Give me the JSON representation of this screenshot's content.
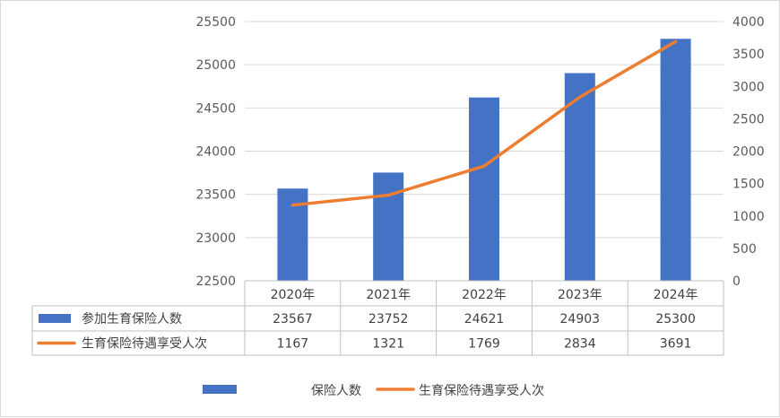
{
  "chart_data": {
    "type": "bar+line",
    "categories": [
      "2020年",
      "2021年",
      "2022年",
      "2023年",
      "2024年"
    ],
    "series": [
      {
        "name": "参加生育保险人数",
        "type": "bar",
        "axis": "left",
        "color": "#4472C4",
        "values": [
          23567,
          23752,
          24621,
          24903,
          25300
        ]
      },
      {
        "name": "生育保险待遇享受人次",
        "type": "line",
        "axis": "right",
        "color": "#ED7D31",
        "values": [
          1167,
          1321,
          1769,
          2834,
          3691
        ]
      }
    ],
    "y_left": {
      "min": 22500,
      "max": 25500,
      "step": 500,
      "ticks": [
        "22500",
        "23000",
        "23500",
        "24000",
        "24500",
        "25000",
        "25500"
      ]
    },
    "y_right": {
      "min": 0,
      "max": 4000,
      "step": 500,
      "ticks": [
        "0",
        "500",
        "1000",
        "1500",
        "2000",
        "2500",
        "3000",
        "3500",
        "4000"
      ]
    },
    "grid": true,
    "data_table": true,
    "legend": {
      "position": "bottom",
      "items": [
        {
          "label": "保险人数",
          "marker": "bar"
        },
        {
          "label": "生育保险待遇享受人次",
          "marker": "line"
        }
      ]
    }
  }
}
